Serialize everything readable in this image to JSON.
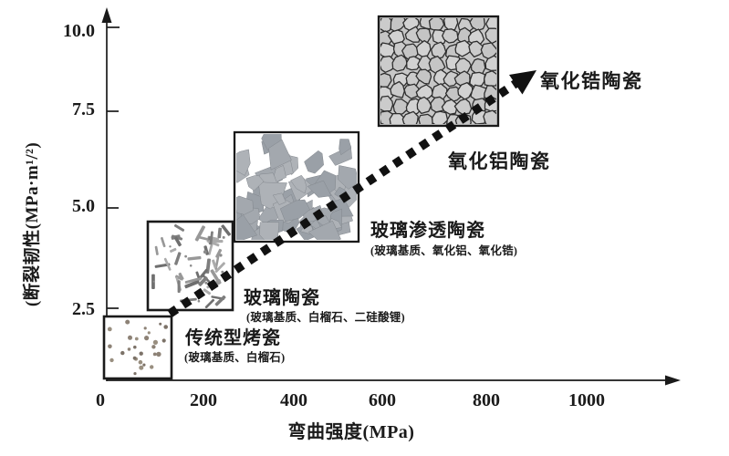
{
  "chart_data": {
    "type": "scatter",
    "title": "",
    "xlabel": "弯曲强度(MPa)",
    "ylabel": "(断裂韧性(MPa·m¹/²)",
    "x_ticks": [
      "0",
      "200",
      "400",
      "600",
      "800",
      "1000"
    ],
    "y_ticks": [
      "10.0",
      "7.5",
      "5.0",
      "2.5"
    ],
    "xlim": [
      0,
      1180
    ],
    "ylim": [
      0,
      10.5
    ],
    "grid": false,
    "legend": false,
    "trend_arrow": {
      "style": "thick-dotted",
      "direction": "up-right",
      "from": [
        140,
        2.2
      ],
      "to": [
        850,
        8.2
      ]
    },
    "materials": [
      {
        "name": "传统型烤瓷",
        "composition": "(玻璃基质、白榴石)",
        "strength_MPa": [
          0,
          150
        ],
        "toughness_MPa_m05": [
          0.8,
          2.3
        ],
        "microstructure": "speckled-dots"
      },
      {
        "name": "玻璃陶瓷",
        "composition": "(玻璃基质、白榴石、二硅酸锂)",
        "strength_MPa": [
          100,
          270
        ],
        "toughness_MPa_m05": [
          2.5,
          4.7
        ],
        "microstructure": "needle-crystals"
      },
      {
        "name": "玻璃渗透陶瓷",
        "composition": "(玻璃基质、氧化铝、氧化锆)",
        "strength_MPa": [
          270,
          530
        ],
        "toughness_MPa_m05": [
          4.2,
          6.9
        ],
        "microstructure": "dense-angular-particles"
      },
      {
        "name": "氧化铝陶瓷",
        "composition": "",
        "strength_MPa": [
          570,
          815
        ],
        "toughness_MPa_m05": [
          7.0,
          9.8
        ],
        "microstructure": "polygonal-grains"
      },
      {
        "name": "氧化锆陶瓷",
        "composition": "",
        "strength_MPa": [
          570,
          815
        ],
        "toughness_MPa_m05": [
          7.0,
          9.8
        ],
        "microstructure": "polygonal-grains"
      }
    ],
    "colors": {
      "ink": "#1a1a1a",
      "grain_fill": "#cbcbcb",
      "particle_fill": "#a3a8ae",
      "needle_fill": "#989898",
      "dot_fill": "#8d8276"
    }
  }
}
